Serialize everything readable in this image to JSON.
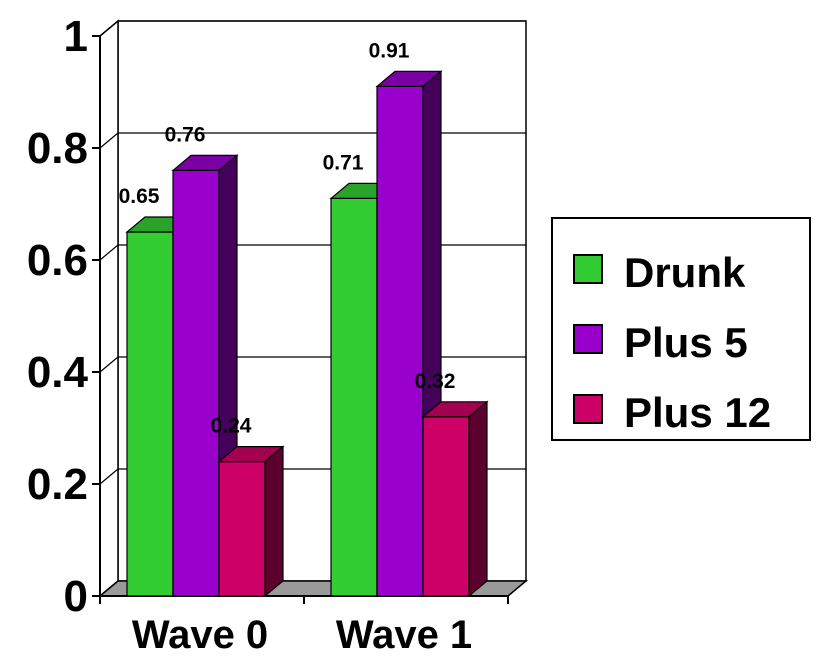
{
  "chart_data": {
    "type": "bar",
    "categories": [
      "Wave 0",
      "Wave 1"
    ],
    "series": [
      {
        "name": "Drunk",
        "values": [
          0.65,
          0.71
        ],
        "labels": [
          "0.65",
          "0.71"
        ],
        "color": "#33cc33"
      },
      {
        "name": "Plus 5",
        "values": [
          0.76,
          0.91
        ],
        "labels": [
          "0.76",
          "0.91"
        ],
        "color": "#9900cc"
      },
      {
        "name": "Plus 12",
        "values": [
          0.24,
          0.32
        ],
        "labels": [
          "0.24",
          "0.32"
        ],
        "color": "#cc0066"
      }
    ],
    "yticks": [
      "0",
      "0.2",
      "0.4",
      "0.6",
      "0.8",
      "1"
    ],
    "ylim": [
      0,
      1
    ],
    "grid": true,
    "three_d": true,
    "legend_position": "right",
    "title": "",
    "xlabel": "",
    "ylabel": ""
  }
}
